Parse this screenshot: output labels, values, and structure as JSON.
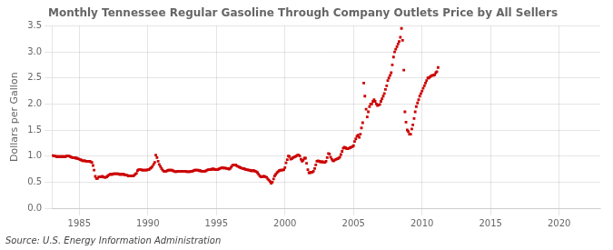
{
  "chart_data": {
    "type": "scatter",
    "title": "Monthly Tennessee Regular Gasoline Through Company Outlets Price by All Sellers",
    "ylabel": "Dollars per Gallon",
    "annotation": "Source: U.S. Energy Information Administration",
    "color": "#CC0000",
    "marker": "square",
    "grid": true,
    "xlim": [
      1983,
      2023
    ],
    "ylim": [
      0.0,
      3.5
    ],
    "xticks": [
      1985,
      1990,
      1995,
      2000,
      2005,
      2010,
      2015,
      2020
    ],
    "yticks": [
      {
        "value": 0.0,
        "label": "0.0"
      },
      0.5,
      {
        "value": 1.0,
        "label": "1.0"
      },
      1.5,
      {
        "value": 2.0,
        "label": "2.0"
      },
      2.5,
      {
        "value": 3.0,
        "label": "3.0"
      },
      3.5
    ],
    "x": [
      1983.08,
      1983.17,
      1983.25,
      1983.33,
      1983.42,
      1983.5,
      1983.58,
      1983.67,
      1983.75,
      1983.83,
      1983.92,
      1984.0,
      1984.08,
      1984.17,
      1984.25,
      1984.33,
      1984.42,
      1984.5,
      1984.58,
      1984.67,
      1984.75,
      1984.83,
      1984.92,
      1985.0,
      1985.08,
      1985.17,
      1985.25,
      1985.33,
      1985.42,
      1985.5,
      1985.58,
      1985.67,
      1985.75,
      1985.83,
      1985.92,
      1986.0,
      1986.08,
      1986.17,
      1986.25,
      1986.33,
      1986.42,
      1986.5,
      1986.58,
      1986.67,
      1986.75,
      1986.83,
      1986.92,
      1987.0,
      1987.08,
      1987.17,
      1987.25,
      1987.33,
      1987.42,
      1987.5,
      1987.58,
      1987.67,
      1987.75,
      1987.83,
      1987.92,
      1988.0,
      1988.08,
      1988.17,
      1988.25,
      1988.33,
      1988.42,
      1988.5,
      1988.58,
      1988.67,
      1988.75,
      1988.83,
      1988.92,
      1989.0,
      1989.08,
      1989.17,
      1989.25,
      1989.33,
      1989.42,
      1989.5,
      1989.58,
      1989.67,
      1989.75,
      1989.83,
      1989.92,
      1990.0,
      1990.08,
      1990.17,
      1990.25,
      1990.33,
      1990.42,
      1990.5,
      1990.58,
      1990.67,
      1990.75,
      1990.83,
      1990.92,
      1991.0,
      1991.08,
      1991.17,
      1991.25,
      1991.33,
      1991.42,
      1991.5,
      1991.58,
      1991.67,
      1991.75,
      1991.83,
      1991.92,
      1992.0,
      1992.08,
      1992.17,
      1992.25,
      1992.33,
      1992.42,
      1992.5,
      1992.58,
      1992.67,
      1992.75,
      1992.83,
      1992.92,
      1993.0,
      1993.08,
      1993.17,
      1993.25,
      1993.33,
      1993.42,
      1993.5,
      1993.58,
      1993.67,
      1993.75,
      1993.83,
      1993.92,
      1994.0,
      1994.08,
      1994.17,
      1994.25,
      1994.33,
      1994.42,
      1994.5,
      1994.58,
      1994.67,
      1994.75,
      1994.83,
      1994.92,
      1995.0,
      1995.08,
      1995.17,
      1995.25,
      1995.33,
      1995.42,
      1995.5,
      1995.58,
      1995.67,
      1995.75,
      1995.83,
      1995.92,
      1996.0,
      1996.08,
      1996.17,
      1996.25,
      1996.33,
      1996.42,
      1996.5,
      1996.58,
      1996.67,
      1996.75,
      1996.83,
      1996.92,
      1997.0,
      1997.08,
      1997.17,
      1997.25,
      1997.33,
      1997.42,
      1997.5,
      1997.58,
      1997.67,
      1997.75,
      1997.83,
      1997.92,
      1998.0,
      1998.08,
      1998.17,
      1998.25,
      1998.33,
      1998.42,
      1998.5,
      1998.58,
      1998.67,
      1998.75,
      1998.83,
      1998.92,
      1999.0,
      1999.08,
      1999.17,
      1999.25,
      1999.33,
      1999.42,
      1999.5,
      1999.58,
      1999.67,
      1999.75,
      1999.83,
      1999.92,
      2000.0,
      2000.08,
      2000.17,
      2000.25,
      2000.33,
      2000.42,
      2000.5,
      2000.58,
      2000.67,
      2000.75,
      2000.83,
      2000.92,
      2001.0,
      2001.08,
      2001.17,
      2001.25,
      2001.33,
      2001.42,
      2001.5,
      2001.58,
      2001.67,
      2001.75,
      2001.83,
      2001.92,
      2002.0,
      2002.08,
      2002.17,
      2002.25,
      2002.33,
      2002.42,
      2002.5,
      2002.58,
      2002.67,
      2002.75,
      2002.83,
      2002.92,
      2003.0,
      2003.08,
      2003.17,
      2003.25,
      2003.33,
      2003.42,
      2003.5,
      2003.58,
      2003.67,
      2003.75,
      2003.83,
      2003.92,
      2004.0,
      2004.08,
      2004.17,
      2004.25,
      2004.33,
      2004.42,
      2004.5,
      2004.58,
      2004.67,
      2004.75,
      2004.83,
      2004.92,
      2005.0,
      2005.08,
      2005.17,
      2005.25,
      2005.33,
      2005.42,
      2005.5,
      2005.58,
      2005.67,
      2005.75,
      2005.83,
      2005.92,
      2006.0,
      2006.08,
      2006.17,
      2006.25,
      2006.33,
      2006.42,
      2006.5,
      2006.58,
      2006.67,
      2006.75,
      2006.83,
      2006.92,
      2007.0,
      2007.08,
      2007.17,
      2007.25,
      2007.33,
      2007.42,
      2007.5,
      2007.58,
      2007.67,
      2007.75,
      2007.83,
      2007.92,
      2008.0,
      2008.08,
      2008.17,
      2008.25,
      2008.33,
      2008.42,
      2008.5,
      2008.58,
      2008.67,
      2008.75,
      2008.83,
      2008.92,
      2009.0,
      2009.08,
      2009.17,
      2009.25,
      2009.33,
      2009.42,
      2009.5,
      2009.58,
      2009.67,
      2009.75,
      2009.83,
      2009.92,
      2010.0,
      2010.08,
      2010.17,
      2010.25,
      2010.33,
      2010.42,
      2010.5,
      2010.58,
      2010.67,
      2010.75,
      2010.83,
      2010.92,
      2011.0,
      2011.08,
      2011.17
    ],
    "values": [
      1.01,
      1.0,
      1.0,
      0.99,
      0.99,
      0.99,
      0.99,
      0.99,
      0.99,
      0.99,
      0.99,
      0.99,
      1.0,
      1.0,
      1.0,
      0.99,
      0.98,
      0.97,
      0.97,
      0.97,
      0.96,
      0.96,
      0.95,
      0.94,
      0.93,
      0.92,
      0.91,
      0.91,
      0.91,
      0.9,
      0.9,
      0.9,
      0.9,
      0.89,
      0.88,
      0.82,
      0.73,
      0.61,
      0.57,
      0.57,
      0.6,
      0.6,
      0.6,
      0.61,
      0.6,
      0.59,
      0.59,
      0.6,
      0.62,
      0.64,
      0.65,
      0.65,
      0.65,
      0.66,
      0.66,
      0.66,
      0.66,
      0.66,
      0.65,
      0.65,
      0.65,
      0.65,
      0.65,
      0.64,
      0.64,
      0.63,
      0.62,
      0.62,
      0.62,
      0.62,
      0.62,
      0.63,
      0.65,
      0.67,
      0.72,
      0.74,
      0.74,
      0.74,
      0.73,
      0.73,
      0.73,
      0.73,
      0.73,
      0.74,
      0.74,
      0.76,
      0.78,
      0.8,
      0.84,
      0.88,
      1.02,
      0.97,
      0.9,
      0.84,
      0.8,
      0.76,
      0.73,
      0.71,
      0.71,
      0.71,
      0.72,
      0.73,
      0.73,
      0.73,
      0.73,
      0.72,
      0.71,
      0.7,
      0.7,
      0.71,
      0.71,
      0.71,
      0.71,
      0.71,
      0.71,
      0.71,
      0.71,
      0.7,
      0.7,
      0.7,
      0.7,
      0.71,
      0.71,
      0.72,
      0.73,
      0.73,
      0.73,
      0.73,
      0.72,
      0.72,
      0.71,
      0.71,
      0.71,
      0.71,
      0.72,
      0.73,
      0.74,
      0.74,
      0.74,
      0.75,
      0.75,
      0.75,
      0.74,
      0.74,
      0.74,
      0.75,
      0.76,
      0.77,
      0.78,
      0.77,
      0.77,
      0.77,
      0.76,
      0.76,
      0.75,
      0.76,
      0.79,
      0.82,
      0.83,
      0.83,
      0.83,
      0.81,
      0.8,
      0.79,
      0.78,
      0.77,
      0.76,
      0.76,
      0.75,
      0.74,
      0.74,
      0.73,
      0.73,
      0.72,
      0.72,
      0.72,
      0.72,
      0.71,
      0.7,
      0.68,
      0.65,
      0.62,
      0.6,
      0.6,
      0.61,
      0.61,
      0.6,
      0.59,
      0.56,
      0.54,
      0.51,
      0.48,
      0.5,
      0.56,
      0.62,
      0.65,
      0.68,
      0.7,
      0.72,
      0.73,
      0.73,
      0.73,
      0.74,
      0.78,
      0.87,
      0.93,
      1.0,
      0.99,
      0.94,
      0.95,
      0.97,
      0.98,
      0.99,
      1.0,
      1.02,
      1.02,
      1.0,
      0.94,
      0.9,
      0.92,
      0.96,
      0.96,
      0.86,
      0.74,
      0.68,
      0.68,
      0.69,
      0.69,
      0.71,
      0.76,
      0.83,
      0.9,
      0.91,
      0.9,
      0.89,
      0.89,
      0.89,
      0.88,
      0.88,
      0.9,
      0.97,
      1.05,
      1.04,
      0.98,
      0.94,
      0.91,
      0.91,
      0.93,
      0.94,
      0.95,
      0.96,
      0.98,
      1.03,
      1.09,
      1.15,
      1.17,
      1.16,
      1.14,
      1.14,
      1.15,
      1.16,
      1.17,
      1.18,
      1.2,
      1.28,
      1.33,
      1.38,
      1.4,
      1.36,
      1.42,
      1.54,
      1.64,
      2.4,
      2.15,
      1.9,
      1.75,
      1.85,
      1.95,
      2.0,
      2.0,
      2.05,
      2.08,
      2.05,
      2.0,
      1.97,
      1.98,
      1.99,
      2.05,
      2.1,
      2.15,
      2.2,
      2.28,
      2.35,
      2.45,
      2.5,
      2.55,
      2.6,
      2.75,
      2.9,
      3.0,
      3.05,
      3.1,
      3.15,
      3.2,
      3.28,
      3.45,
      3.22,
      2.65,
      1.85,
      1.65,
      1.5,
      1.47,
      1.42,
      1.42,
      1.52,
      1.6,
      1.72,
      1.85,
      1.95,
      2.02,
      2.08,
      2.15,
      2.2,
      2.25,
      2.3,
      2.35,
      2.4,
      2.45,
      2.5,
      2.5,
      2.52,
      2.54,
      2.55,
      2.55,
      2.56,
      2.6,
      2.62,
      2.7
    ]
  }
}
